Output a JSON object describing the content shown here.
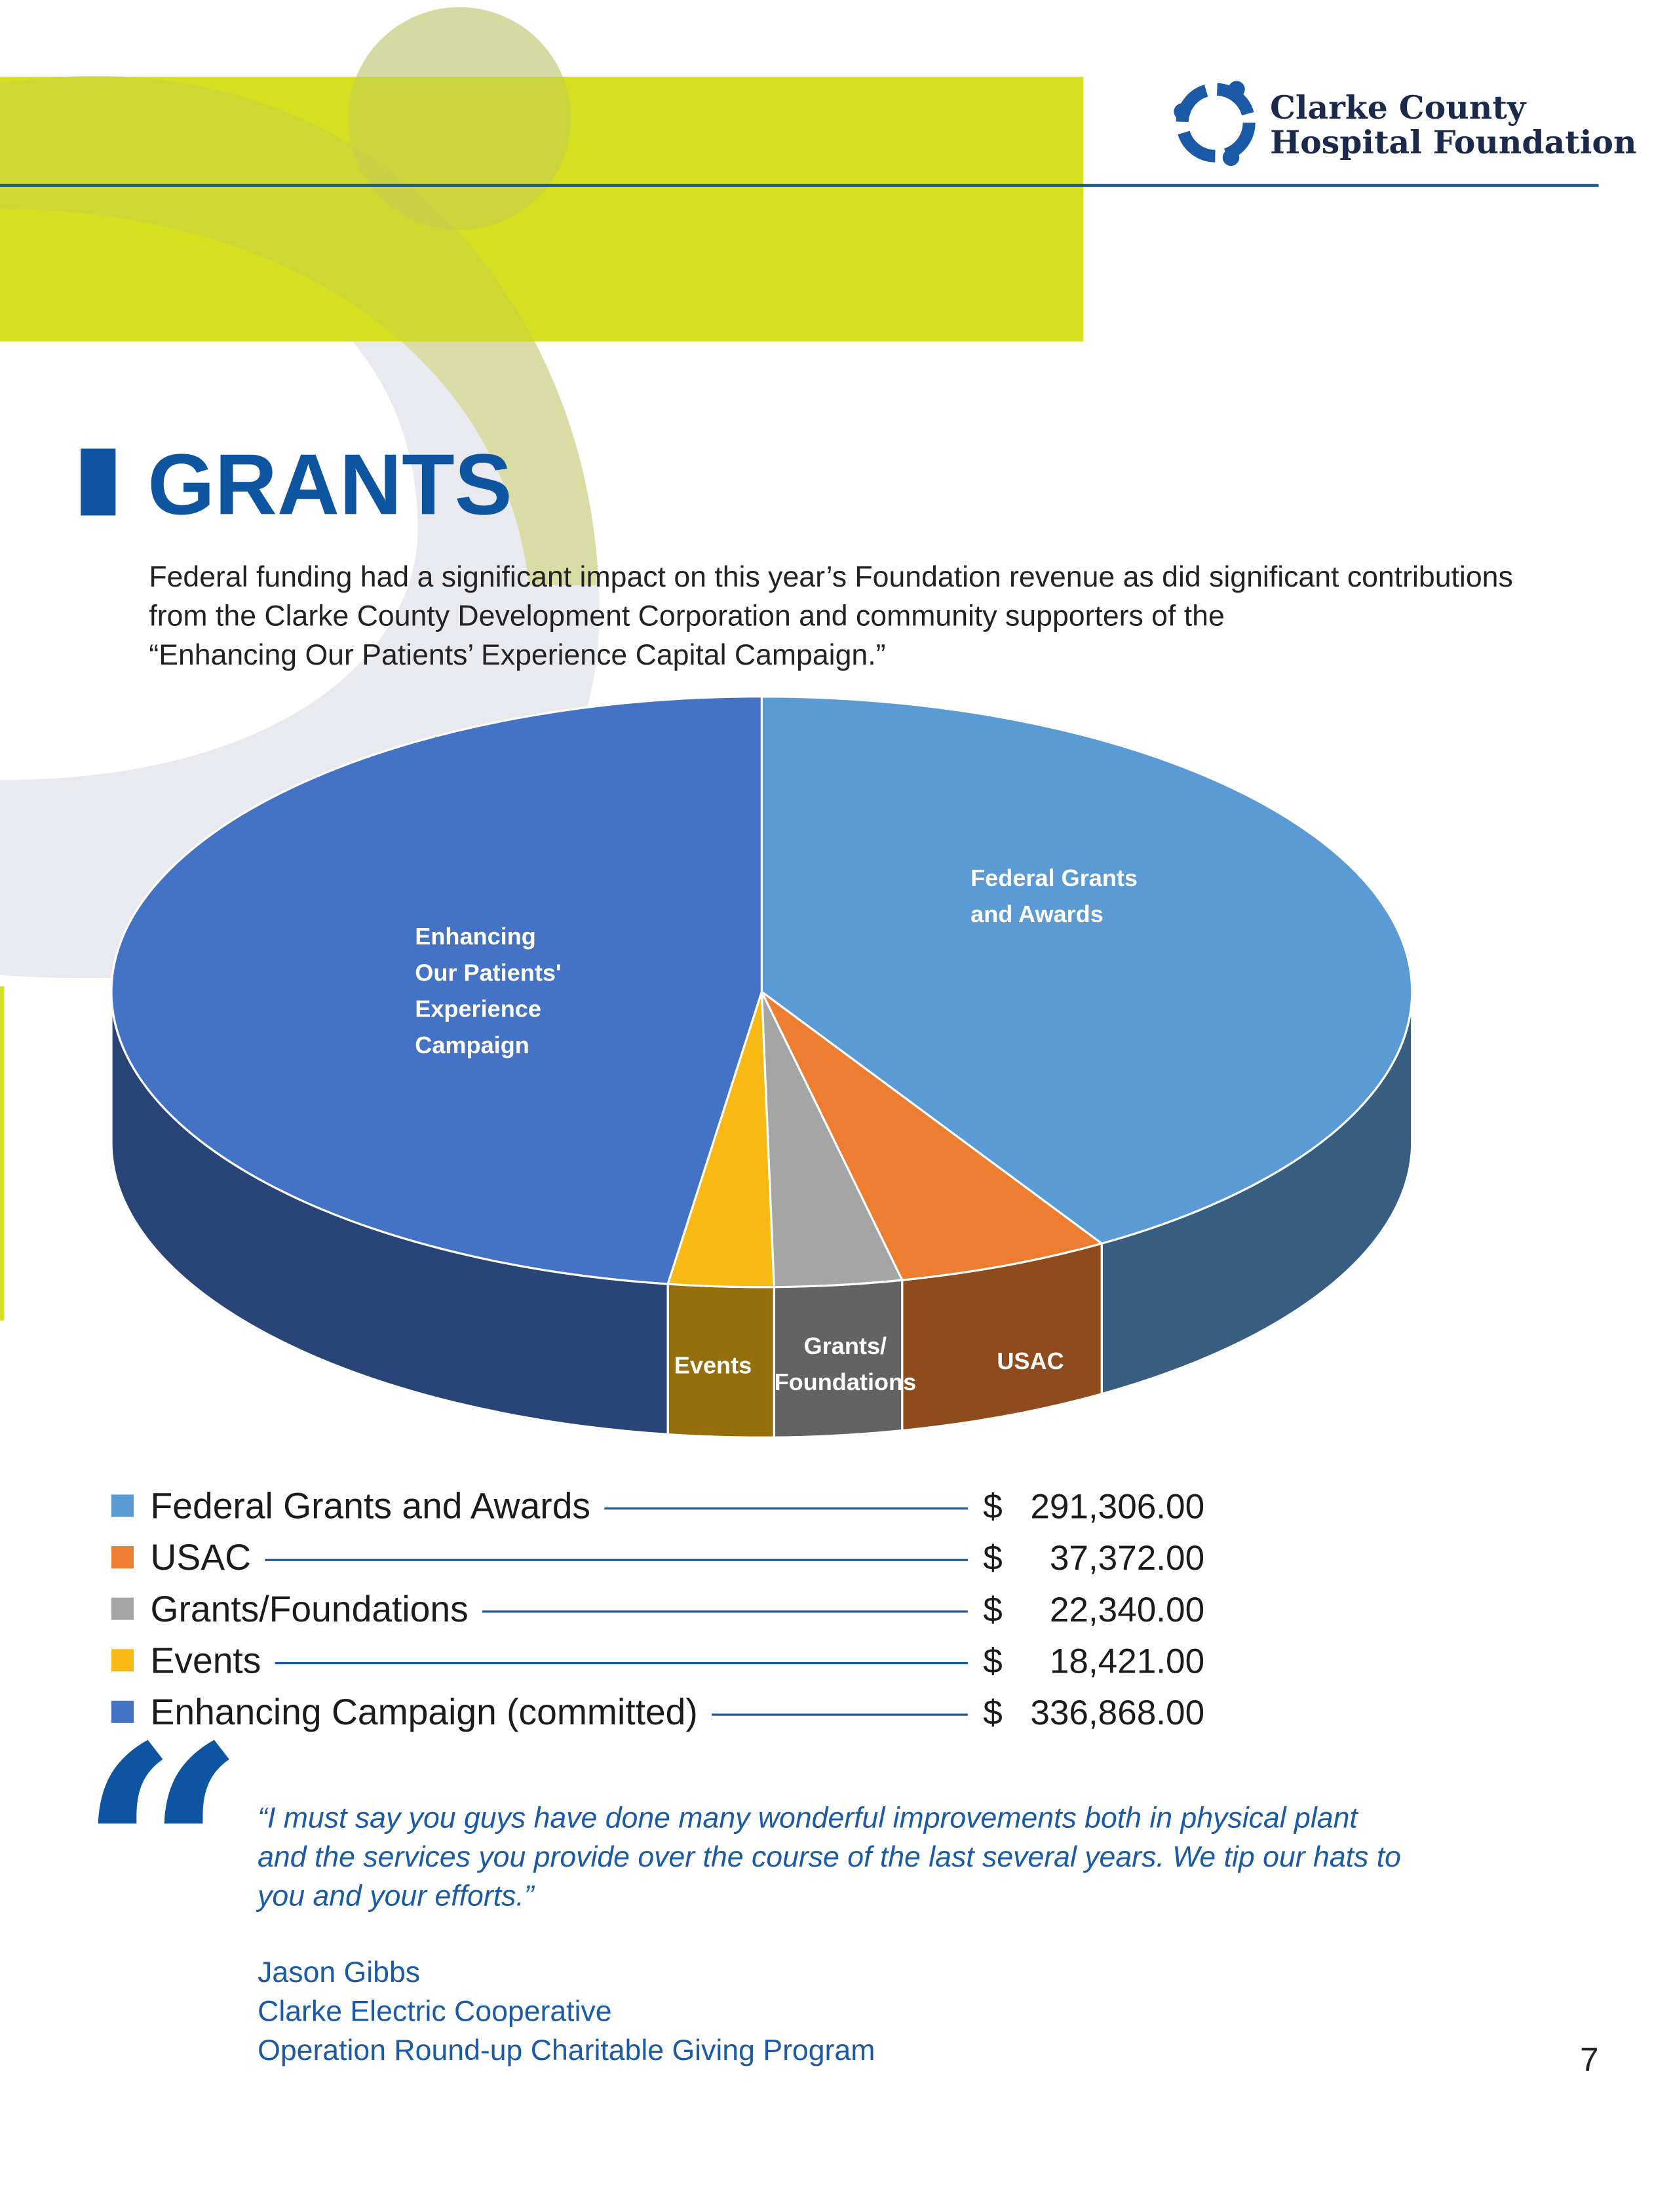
{
  "header": {
    "org_lines": [
      "Clarke County",
      "Hospital Foundation"
    ]
  },
  "title": "GRANTS",
  "intro": [
    "Federal funding had a significant impact on this year’s Foundation revenue as did significant contributions",
    "from the Clarke County Development Corporation and community supporters of the",
    "“Enhancing Our Patients’ Experience Capital Campaign.”"
  ],
  "chart_data": {
    "type": "pie",
    "categories": [
      "Federal Grants and Awards",
      "USAC",
      "Grants/Foundations",
      "Events",
      "Enhancing Campaign (committed)"
    ],
    "values": [
      291306,
      37372,
      22340,
      18421,
      336868
    ],
    "value_labels": [
      "291,306.00",
      "37,372.00",
      "22,340.00",
      "18,421.00",
      "336,868.00"
    ],
    "currency_symbol": "$",
    "colors": [
      "#5b9bd5",
      "#ed7d31",
      "#a5a5a5",
      "#f9b914",
      "#4472c4"
    ],
    "slice_labels": [
      [
        "Federal Grants",
        "and Awards"
      ],
      [
        "USAC"
      ],
      [
        "Grants/",
        "Foundations"
      ],
      [
        "Events"
      ],
      [
        "Enhancing",
        "Our Patients'",
        "Experience",
        "Campaign"
      ]
    ]
  },
  "quote": {
    "lines": [
      "“I must say you guys have done many wonderful improvements both in physical plant",
      "and the services you provide over the course of the last several years. We tip our hats to",
      "you and your efforts.”"
    ],
    "attribution": [
      "Jason Gibbs",
      "Clarke Electric Cooperative",
      "Operation Round-up Charitable Giving Program"
    ]
  },
  "page_number": 7
}
